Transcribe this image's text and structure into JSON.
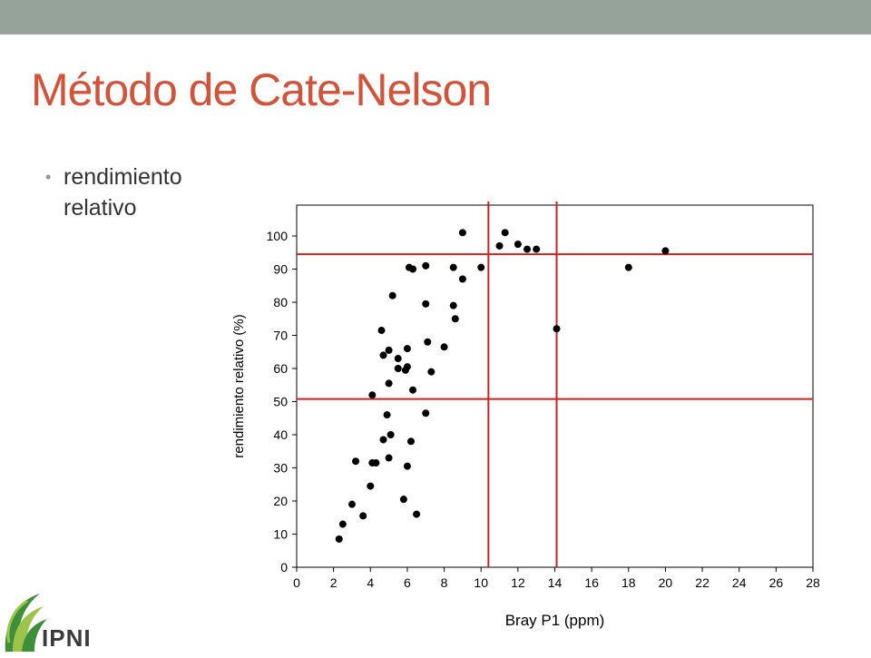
{
  "slide": {
    "title": "Método de Cate-Nelson",
    "bullet": "rendimiento relativo",
    "colors": {
      "topbar": "#95a39a",
      "title": "#d0533a",
      "lines": "#cc2222",
      "points": "#000000"
    }
  },
  "logo": {
    "text": "IPNI",
    "icon": "ipni-leaf-logo-icon",
    "colors": {
      "green": "#3f8f3a",
      "light": "#9cc44a"
    }
  },
  "chart_data": {
    "type": "scatter",
    "title": "",
    "xlabel": "Bray P1 (ppm)",
    "ylabel": "rendimiento relativo (%)",
    "xlim": [
      0,
      28
    ],
    "ylim": [
      0,
      110
    ],
    "xticks": [
      0,
      2,
      4,
      6,
      8,
      10,
      12,
      14,
      16,
      18,
      20,
      22,
      24,
      26,
      28
    ],
    "yticks": [
      0,
      10,
      20,
      30,
      40,
      50,
      60,
      70,
      80,
      90,
      100
    ],
    "grid": false,
    "series": [
      {
        "points": [
          [
            2.3,
            8.5
          ],
          [
            2.5,
            13
          ],
          [
            3.0,
            19
          ],
          [
            3.2,
            32
          ],
          [
            3.6,
            15.5
          ],
          [
            4.0,
            24.5
          ],
          [
            4.1,
            31.5
          ],
          [
            4.3,
            31.5
          ],
          [
            4.1,
            52
          ],
          [
            4.6,
            71.5
          ],
          [
            4.7,
            64
          ],
          [
            4.7,
            38.5
          ],
          [
            4.9,
            46
          ],
          [
            5.0,
            65.5
          ],
          [
            5.0,
            55.5
          ],
          [
            5.0,
            33
          ],
          [
            5.1,
            40
          ],
          [
            5.2,
            82
          ],
          [
            5.5,
            63
          ],
          [
            5.5,
            60
          ],
          [
            5.8,
            20.5
          ],
          [
            5.9,
            59.5
          ],
          [
            6.0,
            60.5
          ],
          [
            6.0,
            66
          ],
          [
            6.0,
            30.5
          ],
          [
            6.1,
            90.5
          ],
          [
            6.2,
            38
          ],
          [
            6.3,
            90
          ],
          [
            6.3,
            53.5
          ],
          [
            6.5,
            16
          ],
          [
            7.0,
            91
          ],
          [
            7.0,
            79.5
          ],
          [
            7.0,
            46.5
          ],
          [
            7.1,
            68
          ],
          [
            7.3,
            59
          ],
          [
            8.0,
            66.5
          ],
          [
            8.5,
            90.5
          ],
          [
            8.5,
            79
          ],
          [
            8.6,
            75
          ],
          [
            9.0,
            87
          ],
          [
            9.0,
            101
          ],
          [
            10.0,
            90.5
          ],
          [
            11.0,
            97
          ],
          [
            11.3,
            101
          ],
          [
            12.0,
            97.5
          ],
          [
            12.5,
            96
          ],
          [
            13.0,
            96
          ],
          [
            14.1,
            72
          ],
          [
            18.0,
            90.5
          ],
          [
            20.0,
            95.5
          ]
        ]
      }
    ],
    "reference_lines": {
      "horizontal": [
        94.5,
        50.8
      ],
      "vertical": [
        10.4,
        14.1
      ]
    }
  }
}
